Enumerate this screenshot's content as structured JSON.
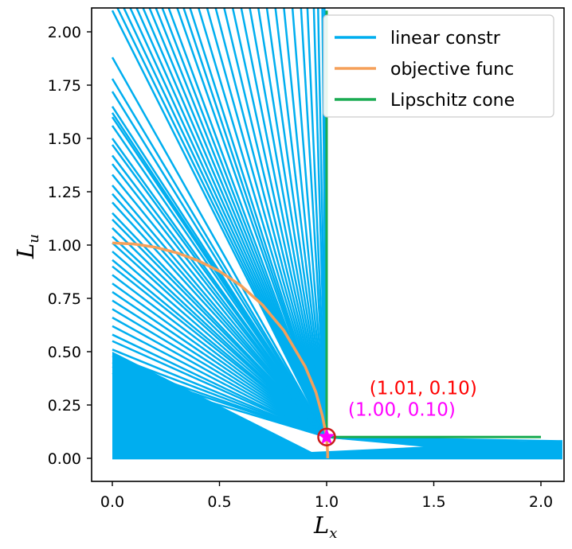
{
  "chart_data": {
    "type": "line",
    "xlabel": {
      "main": "L",
      "sub": "x"
    },
    "ylabel": {
      "main": "L",
      "sub": "u"
    },
    "xlim": [
      -0.09,
      2.1
    ],
    "ylim": [
      -0.1,
      2.1
    ],
    "xticks": [
      "0.0",
      "0.5",
      "1.0",
      "1.5",
      "2.0"
    ],
    "yticks": [
      "0.00",
      "0.25",
      "0.50",
      "0.75",
      "1.00",
      "1.25",
      "1.50",
      "1.75",
      "2.00"
    ],
    "xtick_values": [
      0.0,
      0.5,
      1.0,
      1.5,
      2.0
    ],
    "ytick_values": [
      0.0,
      0.25,
      0.5,
      0.75,
      1.0,
      1.25,
      1.5,
      1.75,
      2.0
    ],
    "grid": false,
    "legend_position": "top-right",
    "colors": {
      "linear_constr": "#00aeef",
      "objective_func": "#f5a05a",
      "lipschitz_cone": "#1aab52",
      "star": "#ff00ff",
      "circle": "#cc1a1a",
      "annot_red": "#ff0000",
      "annot_magenta": "#ff00ff"
    },
    "series": [
      {
        "name": "linear constr",
        "kind": "fan",
        "steep_intercepts": [
          2.1,
          1.88,
          1.78,
          1.72,
          1.65,
          1.62,
          1.6,
          1.56,
          1.5,
          1.47,
          1.42,
          1.38,
          1.33,
          1.28,
          1.24,
          1.2,
          1.15,
          1.12,
          1.08,
          1.04,
          1.01,
          0.97,
          0.93,
          0.9,
          0.86,
          0.82,
          0.78,
          0.74,
          0.7,
          0.66,
          0.62,
          0.58,
          0.55,
          0.51,
          0.48,
          0.45,
          0.43,
          0.4
        ],
        "high_x_intercepts": [
          0.02,
          0.05,
          0.08,
          0.11,
          0.14,
          0.17,
          0.2,
          0.23,
          0.26,
          0.3,
          0.33,
          0.36,
          0.4,
          0.44,
          0.48,
          0.52,
          0.56,
          0.6,
          0.64,
          0.68,
          0.72,
          0.76,
          0.8,
          0.84,
          0.88,
          0.91,
          0.94,
          0.96,
          0.98,
          0.99
        ],
        "shallow_right_y": [
          0.0,
          0.01,
          0.02,
          0.03,
          0.04,
          0.05,
          0.06,
          0.07,
          0.08
        ]
      },
      {
        "name": "objective func",
        "kind": "quarter-circle",
        "points": [
          [
            0.0,
            1.01
          ],
          [
            0.1,
            1.005
          ],
          [
            0.2,
            0.99
          ],
          [
            0.3,
            0.964
          ],
          [
            0.4,
            0.927
          ],
          [
            0.5,
            0.877
          ],
          [
            0.6,
            0.81
          ],
          [
            0.7,
            0.72
          ],
          [
            0.8,
            0.6
          ],
          [
            0.9,
            0.43
          ],
          [
            0.95,
            0.31
          ],
          [
            0.98,
            0.2
          ],
          [
            1.0,
            0.1
          ],
          [
            1.005,
            0.02
          ],
          [
            1.005,
            0.0
          ]
        ]
      },
      {
        "name": "Lipschitz cone",
        "kind": "corner",
        "points": [
          [
            1.0,
            2.1
          ],
          [
            1.0,
            0.1
          ],
          [
            2.0,
            0.1
          ]
        ]
      }
    ],
    "marker": {
      "x": 1.0,
      "y": 0.1
    },
    "annotations": [
      {
        "text": "(1.01, 0.10)",
        "x": 1.2,
        "y": 0.3,
        "color": "annot_red"
      },
      {
        "text": "(1.00, 0.10)",
        "x": 1.1,
        "y": 0.2,
        "color": "annot_magenta"
      }
    ]
  }
}
